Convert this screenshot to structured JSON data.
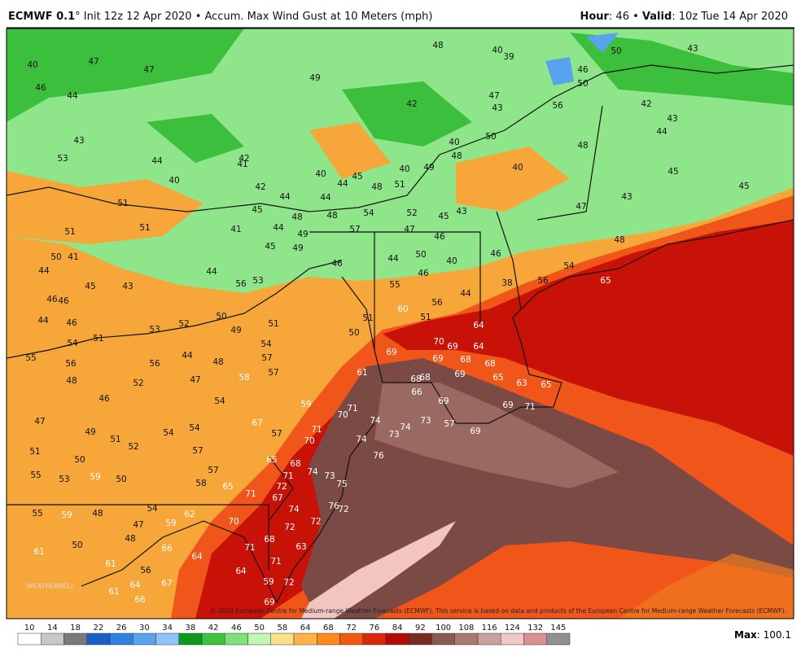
{
  "header": {
    "model": "ECMWF 0.1",
    "description": "° Init 12z 12 Apr 2020 • Accum. Max Wind Gust at 10 Meters (mph)",
    "hour_label": "Hour",
    "hour_value": ": 46 • ",
    "valid_label": "Valid",
    "valid_value": ": 10z Tue 14 Apr 2020"
  },
  "map": {
    "copyright": "© 2020 European Centre for Medium-range Weather Forecasts (ECMWF). This service is based on data and products of the European Centre for Medium-range Weather Forecasts (ECMWF).",
    "logo": "WEATHERBELL",
    "labels": [
      "40",
      "47",
      "47",
      "49",
      "48",
      "40",
      "39",
      "50",
      "43",
      "46",
      "44",
      "42",
      "47",
      "43",
      "46",
      "50",
      "56",
      "42",
      "43",
      "44",
      "43",
      "53",
      "44",
      "42",
      "41",
      "40",
      "45",
      "50",
      "40",
      "48",
      "49",
      "40",
      "48",
      "40",
      "45",
      "45",
      "40",
      "42",
      "44",
      "48",
      "51",
      "43",
      "44",
      "44",
      "51",
      "45",
      "48",
      "54",
      "52",
      "45",
      "43",
      "47",
      "51",
      "51",
      "41",
      "44",
      "48",
      "49",
      "57",
      "47",
      "46",
      "48",
      "50",
      "41",
      "45",
      "49",
      "44",
      "50",
      "40",
      "46",
      "46",
      "54",
      "44",
      "44",
      "53",
      "46",
      "56",
      "45",
      "43",
      "55",
      "38",
      "56",
      "65",
      "44",
      "56",
      "46",
      "46",
      "50",
      "51",
      "60",
      "51",
      "44",
      "46",
      "53",
      "52",
      "49",
      "51",
      "50",
      "64",
      "54",
      "51",
      "54",
      "70",
      "69",
      "64",
      "55",
      "56",
      "56",
      "44",
      "48",
      "57",
      "69",
      "69",
      "68",
      "68",
      "57",
      "61",
      "68",
      "68",
      "69",
      "65",
      "63",
      "65",
      "48",
      "52",
      "47",
      "58",
      "46",
      "54",
      "66",
      "69",
      "59",
      "71",
      "70",
      "69",
      "71",
      "47",
      "67",
      "74",
      "74",
      "73",
      "57",
      "69",
      "49",
      "54",
      "54",
      "57",
      "71",
      "70",
      "74",
      "73",
      "51",
      "52",
      "57",
      "51",
      "50",
      "65",
      "68",
      "76",
      "74",
      "73",
      "57",
      "71",
      "55",
      "53",
      "59",
      "50",
      "58",
      "72",
      "75",
      "65",
      "71",
      "67",
      "74",
      "76",
      "72",
      "55",
      "59",
      "48",
      "54",
      "62",
      "70",
      "72",
      "47",
      "59",
      "72",
      "48",
      "50",
      "66",
      "61",
      "68",
      "71",
      "63",
      "64",
      "71",
      "61",
      "56",
      "64",
      "59",
      "72",
      "67",
      "64",
      "61",
      "66",
      "69"
    ]
  },
  "colorbar": {
    "ticks": [
      10,
      14,
      18,
      22,
      26,
      30,
      34,
      38,
      42,
      46,
      50,
      58,
      64,
      68,
      72,
      76,
      84,
      92,
      100,
      108,
      116,
      124,
      132,
      145
    ],
    "colors": [
      "#ffffff",
      "#c8c8c8",
      "#7a7a7a",
      "#1a5fc4",
      "#2f80e0",
      "#59a3ee",
      "#8ec4f7",
      "#0c9a1c",
      "#3cc43c",
      "#7ee07a",
      "#c3f5b4",
      "#fbe08a",
      "#ffb347",
      "#ff8a1c",
      "#f05a0a",
      "#d82a0a",
      "#b40a0a",
      "#7a2a20",
      "#8a5a50",
      "#a87a72",
      "#caa09a",
      "#f0c8c8",
      "#d89090",
      "#909090"
    ],
    "max_label": "Max",
    "max_value": ": 100.1"
  }
}
